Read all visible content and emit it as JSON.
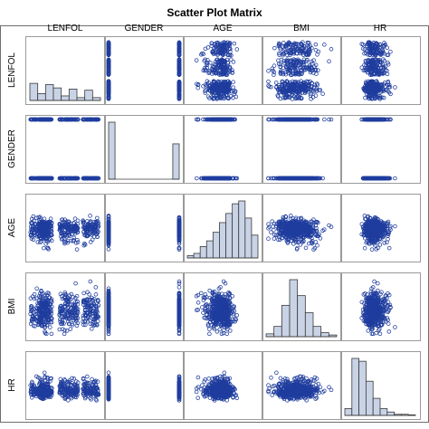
{
  "chart_data": {
    "type": "scatter-matrix",
    "title": "Scatter Plot Matrix",
    "variables": [
      "LENFOL",
      "GENDER",
      "AGE",
      "BMI",
      "HR"
    ],
    "diagonal": "histogram",
    "grid": false,
    "legend": "none",
    "colors": {
      "marker": "#1f3d9e",
      "bar_fill": "#c9d3e6",
      "bar_edge": "#3a3a3a",
      "cell_border": "#9a9a9a",
      "outer_frame": "#6e6e6e",
      "text": "#000000"
    },
    "variable_ranges": {
      "LENFOL": [
        0,
        2400
      ],
      "GENDER": [
        0,
        1
      ],
      "AGE": [
        30,
        104
      ],
      "BMI": [
        14,
        45
      ],
      "HR": [
        35,
        190
      ]
    },
    "histograms": {
      "LENFOL": [
        0.3,
        0.12,
        0.28,
        0.22,
        0.08,
        0.2,
        0.05,
        0.18,
        0.05
      ],
      "GENDER": [
        1.0,
        0,
        0,
        0,
        0,
        0,
        0,
        0,
        0,
        0,
        0.62
      ],
      "AGE": [
        0.04,
        0.08,
        0.2,
        0.3,
        0.45,
        0.62,
        0.78,
        0.95,
        1.0,
        0.7,
        0.4
      ],
      "BMI": [
        0.05,
        0.18,
        0.55,
        1.0,
        0.72,
        0.42,
        0.18,
        0.07,
        0.03
      ],
      "HR": [
        0.12,
        1.0,
        0.95,
        0.6,
        0.3,
        0.12,
        0.06,
        0.02,
        0.02,
        0.01
      ]
    },
    "observations": 500
  }
}
